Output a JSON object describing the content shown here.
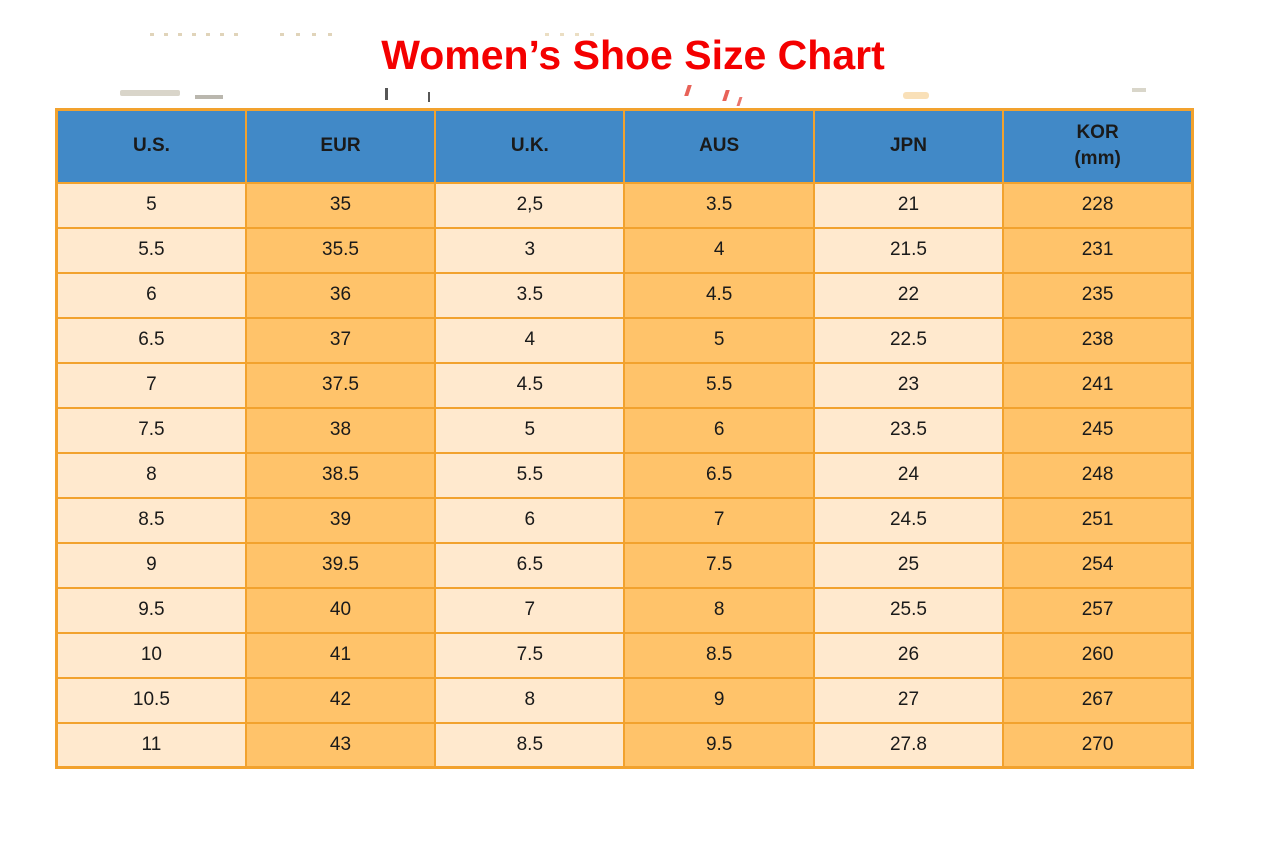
{
  "title": {
    "text": "Women’s Shoe Size Chart",
    "color": "#f40000"
  },
  "table": {
    "headers": [
      {
        "label": "U.S.",
        "sub": ""
      },
      {
        "label": "EUR",
        "sub": ""
      },
      {
        "label": "U.K.",
        "sub": ""
      },
      {
        "label": "AUS",
        "sub": ""
      },
      {
        "label": "JPN",
        "sub": ""
      },
      {
        "label": "KOR",
        "sub": "(mm)"
      }
    ],
    "rows": [
      [
        "5",
        "35",
        "2,5",
        "3.5",
        "21",
        "228"
      ],
      [
        "5.5",
        "35.5",
        "3",
        "4",
        "21.5",
        "231"
      ],
      [
        "6",
        "36",
        "3.5",
        "4.5",
        "22",
        "235"
      ],
      [
        "6.5",
        "37",
        "4",
        "5",
        "22.5",
        "238"
      ],
      [
        "7",
        "37.5",
        "4.5",
        "5.5",
        "23",
        "241"
      ],
      [
        "7.5",
        "38",
        "5",
        "6",
        "23.5",
        "245"
      ],
      [
        "8",
        "38.5",
        "5.5",
        "6.5",
        "24",
        "248"
      ],
      [
        "8.5",
        "39",
        "6",
        "7",
        "24.5",
        "251"
      ],
      [
        "9",
        "39.5",
        "6.5",
        "7.5",
        "25",
        "254"
      ],
      [
        "9.5",
        "40",
        "7",
        "8",
        "25.5",
        "257"
      ],
      [
        "10",
        "41",
        "7.5",
        "8.5",
        "26",
        "260"
      ],
      [
        "10.5",
        "42",
        "8",
        "9",
        "27",
        "267"
      ],
      [
        "11",
        "43",
        "8.5",
        "9.5",
        "27.8",
        "270"
      ]
    ],
    "colors": {
      "header_bg": "#4189c7",
      "cell_cream": "#ffe9ce",
      "cell_orange": "#ffc36a",
      "border": "#f2a22e",
      "text": "#1a1a1a",
      "title": "#f40000"
    }
  },
  "chart_data": {
    "type": "table",
    "title": "Women’s Shoe Size Chart",
    "columns": [
      "U.S.",
      "EUR",
      "U.K.",
      "AUS",
      "JPN",
      "KOR (mm)"
    ],
    "rows": [
      [
        "5",
        "35",
        "2,5",
        "3.5",
        "21",
        "228"
      ],
      [
        "5.5",
        "35.5",
        "3",
        "4",
        "21.5",
        "231"
      ],
      [
        "6",
        "36",
        "3.5",
        "4.5",
        "22",
        "235"
      ],
      [
        "6.5",
        "37",
        "4",
        "5",
        "22.5",
        "238"
      ],
      [
        "7",
        "37.5",
        "4.5",
        "5.5",
        "23",
        "241"
      ],
      [
        "7.5",
        "38",
        "5",
        "6",
        "23.5",
        "245"
      ],
      [
        "8",
        "38.5",
        "5.5",
        "6.5",
        "24",
        "248"
      ],
      [
        "8.5",
        "39",
        "6",
        "7",
        "24.5",
        "251"
      ],
      [
        "9",
        "39.5",
        "6.5",
        "7.5",
        "25",
        "254"
      ],
      [
        "9.5",
        "40",
        "7",
        "8",
        "25.5",
        "257"
      ],
      [
        "10",
        "41",
        "7.5",
        "8.5",
        "26",
        "260"
      ],
      [
        "10.5",
        "42",
        "8",
        "9",
        "27",
        "267"
      ],
      [
        "11",
        "43",
        "8.5",
        "9.5",
        "27.8",
        "270"
      ]
    ],
    "layout": {
      "grid": true,
      "header_position": "top",
      "column_fill_pattern": [
        "cream",
        "orange",
        "cream",
        "orange",
        "cream",
        "orange"
      ]
    }
  }
}
